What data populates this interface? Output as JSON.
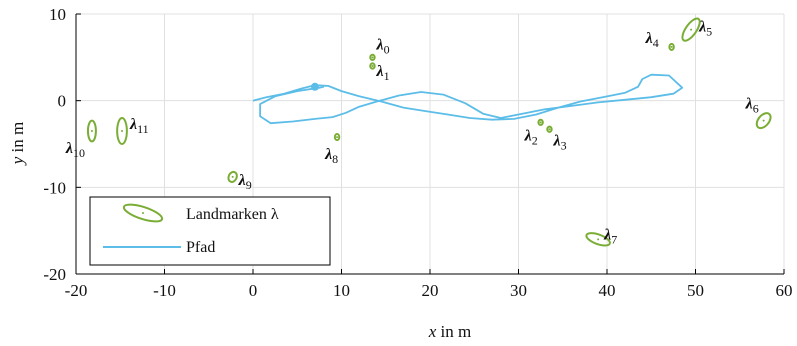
{
  "chart_data": {
    "type": "scatter",
    "title": "",
    "xlabel_var": "x",
    "xlabel_unit": " in m",
    "ylabel_var": "y",
    "ylabel_unit": " in m",
    "xlim": [
      -20,
      60
    ],
    "ylim": [
      -20,
      10
    ],
    "xticks": [
      -20,
      -10,
      0,
      10,
      20,
      30,
      40,
      50,
      60
    ],
    "yticks": [
      -20,
      -10,
      0,
      10
    ],
    "xtick_labels": [
      "-20",
      "-10",
      "0",
      "10",
      "20",
      "30",
      "40",
      "50",
      "60"
    ],
    "ytick_labels": [
      "-20",
      "-10",
      "0",
      "10"
    ],
    "grid": true,
    "legend_position": "bottom-left",
    "colors": {
      "landmark": "#7aad35",
      "path": "#5bbde8",
      "grid": "#e0e0e0",
      "axis": "#000000"
    },
    "legend": [
      {
        "label": "Landmarken λ",
        "kind": "ellipse"
      },
      {
        "label": "Pfad",
        "kind": "line"
      }
    ],
    "landmarks": [
      {
        "sym": "λ",
        "sub": "0",
        "x": 13.5,
        "y": 5.0,
        "rx": 0.25,
        "ry": 0.3,
        "angle": 0
      },
      {
        "sym": "λ",
        "sub": "1",
        "x": 13.5,
        "y": 4.0,
        "rx": 0.25,
        "ry": 0.3,
        "angle": 0
      },
      {
        "sym": "λ",
        "sub": "2",
        "x": 32.5,
        "y": -2.5,
        "rx": 0.25,
        "ry": 0.3,
        "angle": 0
      },
      {
        "sym": "λ",
        "sub": "3",
        "x": 33.5,
        "y": -3.3,
        "rx": 0.25,
        "ry": 0.3,
        "angle": 0
      },
      {
        "sym": "λ",
        "sub": "4",
        "x": 47.3,
        "y": 6.2,
        "rx": 0.25,
        "ry": 0.35,
        "angle": 0
      },
      {
        "sym": "λ",
        "sub": "5",
        "x": 49.5,
        "y": 8.2,
        "rx": 0.6,
        "ry": 1.5,
        "angle": 35
      },
      {
        "sym": "λ",
        "sub": "6",
        "x": 57.7,
        "y": -2.3,
        "rx": 0.6,
        "ry": 1.0,
        "angle": 40
      },
      {
        "sym": "λ",
        "sub": "7",
        "x": 39.0,
        "y": -16.0,
        "rx": 1.4,
        "ry": 0.55,
        "angle": 20
      },
      {
        "sym": "λ",
        "sub": "8",
        "x": 9.5,
        "y": -4.2,
        "rx": 0.25,
        "ry": 0.35,
        "angle": 0
      },
      {
        "sym": "λ",
        "sub": "9",
        "x": -2.3,
        "y": -8.8,
        "rx": 0.45,
        "ry": 0.6,
        "angle": 25
      },
      {
        "sym": "λ",
        "sub": "10",
        "x": -18.2,
        "y": -3.5,
        "rx": 0.45,
        "ry": 1.2,
        "angle": 0
      },
      {
        "sym": "λ",
        "sub": "11",
        "x": -14.8,
        "y": -3.5,
        "rx": 0.55,
        "ry": 1.5,
        "angle": 0
      }
    ],
    "path": {
      "x": [
        0,
        1.5,
        3.5,
        5.5,
        7.0,
        8.5,
        10.0,
        12.0,
        14.5,
        17.0,
        19.5,
        22.0,
        24.5,
        27.0,
        29.5,
        32.0,
        34.5,
        37.0,
        39.5,
        42.0,
        43.5,
        44.0,
        45.0,
        47.0,
        48.5,
        47.5,
        45.0,
        42.0,
        39.0,
        36.0,
        33.0,
        30.0,
        28.0,
        26.0,
        24.0,
        21.5,
        19.0,
        16.5,
        14.0,
        12.0,
        10.5,
        9.0,
        7.0,
        4.5,
        2.0,
        0.8,
        0.8,
        2.5,
        5.0,
        7.5,
        8.0
      ],
      "y": [
        0,
        0.4,
        0.8,
        1.4,
        1.8,
        1.7,
        1.1,
        0.5,
        -0.1,
        -0.8,
        -1.2,
        -1.6,
        -2.0,
        -2.2,
        -2.1,
        -1.6,
        -0.8,
        -0.1,
        0.4,
        0.9,
        1.6,
        2.5,
        3.0,
        2.9,
        1.5,
        0.8,
        0.4,
        0.1,
        -0.2,
        -0.6,
        -1.0,
        -1.6,
        -2.0,
        -1.5,
        -0.3,
        0.7,
        1.0,
        0.6,
        -0.1,
        -0.7,
        -1.4,
        -1.9,
        -2.1,
        -2.4,
        -2.6,
        -1.8,
        -0.4,
        0.5,
        1.1,
        1.5,
        1.6
      ]
    },
    "start": {
      "x": 7.0,
      "y": 1.6
    }
  }
}
